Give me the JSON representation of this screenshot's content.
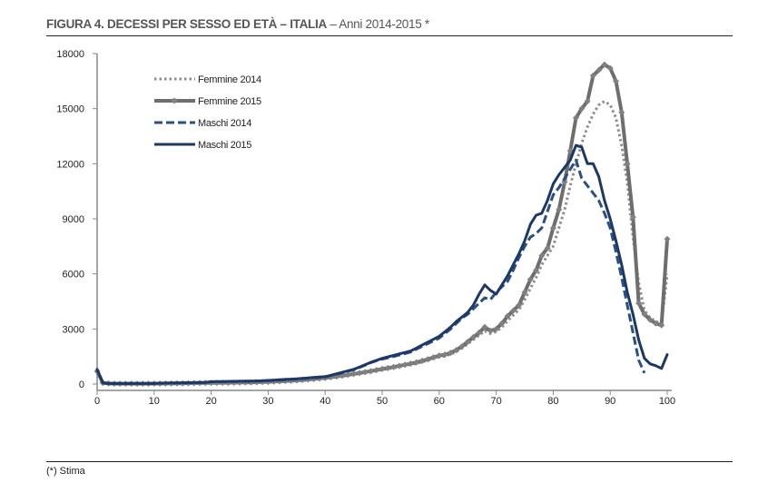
{
  "title": {
    "bold": "FIGURA 4. DECESSI PER SESSO ED ETÀ  – ITALIA",
    "light": " – Anni 2014-2015 *"
  },
  "footnote": "(*) Stima",
  "chart_data": {
    "type": "line",
    "title": "FIGURA 4. DECESSI PER SESSO ED ETÀ – ITALIA – Anni 2014-2015 *",
    "xlabel": "",
    "ylabel": "",
    "xlim": [
      0,
      100
    ],
    "ylim": [
      0,
      18000
    ],
    "x_ticks": [
      "0",
      "10",
      "20",
      "30",
      "40",
      "50",
      "60",
      "70",
      "80",
      "90",
      "100"
    ],
    "y_ticks": [
      "0",
      "3000",
      "6000",
      "9000",
      "12000",
      "15000",
      "18000"
    ],
    "grid": false,
    "legend_position": "top-left",
    "series": [
      {
        "name": "Femmine 2014",
        "color": "#8c8c8c",
        "style": "dotted",
        "values": [
          660,
          55,
          28,
          19,
          19,
          19,
          19,
          19,
          19,
          19,
          24,
          24,
          28,
          28,
          33,
          38,
          43,
          48,
          52,
          57,
          57,
          62,
          66,
          66,
          71,
          76,
          81,
          86,
          95,
          105,
          114,
          128,
          143,
          157,
          171,
          190,
          209,
          233,
          257,
          285,
          314,
          352,
          390,
          428,
          475,
          523,
          570,
          618,
          665,
          722,
          780,
          830,
          885,
          940,
          1000,
          1055,
          1120,
          1200,
          1285,
          1380,
          1470,
          1520,
          1620,
          1760,
          1950,
          2180,
          2420,
          2650,
          2900,
          2750,
          2850,
          3100,
          3450,
          3750,
          4050,
          4600,
          5200,
          5800,
          6500,
          7000,
          7500,
          8500,
          9500,
          10800,
          12000,
          13100,
          14000,
          14700,
          15200,
          15400,
          15200,
          14500,
          13000,
          11000,
          8000,
          5500,
          4000,
          3600,
          3400,
          3300,
          6000
        ]
      },
      {
        "name": "Femmine 2015",
        "color": "#6e6e6e",
        "style": "solid-diamond",
        "values": [
          700,
          60,
          30,
          20,
          20,
          20,
          20,
          20,
          20,
          20,
          25,
          25,
          30,
          30,
          35,
          40,
          45,
          50,
          55,
          60,
          60,
          65,
          70,
          70,
          75,
          80,
          85,
          90,
          100,
          110,
          120,
          135,
          150,
          165,
          180,
          200,
          220,
          245,
          270,
          300,
          330,
          370,
          410,
          450,
          500,
          550,
          600,
          650,
          700,
          760,
          820,
          870,
          930,
          990,
          1050,
          1110,
          1180,
          1260,
          1350,
          1450,
          1550,
          1600,
          1700,
          1850,
          2050,
          2300,
          2550,
          2800,
          3100,
          2900,
          3000,
          3300,
          3700,
          4000,
          4300,
          5000,
          5700,
          6200,
          7000,
          7400,
          8500,
          9500,
          11000,
          12700,
          14500,
          15000,
          15400,
          16800,
          17100,
          17400,
          17200,
          16500,
          14800,
          12000,
          9100,
          4400,
          3800,
          3500,
          3300,
          3200,
          7900
        ]
      },
      {
        "name": "Maschi 2014",
        "color": "#2a4f80",
        "style": "dashed",
        "values": [
          760,
          65,
          28,
          28,
          28,
          28,
          28,
          28,
          28,
          28,
          28,
          45,
          50,
          55,
          60,
          65,
          70,
          75,
          80,
          85,
          120,
          125,
          130,
          135,
          140,
          145,
          150,
          155,
          160,
          170,
          190,
          200,
          215,
          230,
          250,
          265,
          290,
          315,
          340,
          365,
          390,
          460,
          540,
          620,
          700,
          770,
          900,
          1030,
          1160,
          1270,
          1360,
          1430,
          1500,
          1580,
          1660,
          1740,
          1900,
          2050,
          2200,
          2350,
          2500,
          2750,
          3000,
          3300,
          3600,
          3800,
          4100,
          4400,
          4700,
          4600,
          5000,
          5300,
          5600,
          6200,
          6900,
          7500,
          8000,
          8200,
          8500,
          9400,
          10300,
          10700,
          11200,
          11700,
          12200,
          11200,
          10800,
          10400,
          10000,
          9300,
          8500,
          7200,
          5800,
          4300,
          2800,
          1300,
          600,
          null,
          null,
          null,
          null
        ]
      },
      {
        "name": "Maschi 2015",
        "color": "#1b3866",
        "style": "solid",
        "values": [
          800,
          70,
          30,
          30,
          30,
          30,
          30,
          30,
          30,
          30,
          30,
          50,
          55,
          60,
          65,
          70,
          75,
          80,
          85,
          90,
          130,
          135,
          140,
          145,
          150,
          155,
          160,
          165,
          170,
          180,
          200,
          215,
          230,
          250,
          265,
          280,
          305,
          330,
          355,
          380,
          400,
          480,
          560,
          640,
          720,
          800,
          920,
          1050,
          1180,
          1290,
          1400,
          1480,
          1560,
          1640,
          1720,
          1800,
          1960,
          2120,
          2280,
          2440,
          2600,
          2850,
          3100,
          3400,
          3650,
          3900,
          4300,
          4900,
          5400,
          5100,
          4900,
          5400,
          5900,
          6500,
          7100,
          7800,
          8700,
          9200,
          9300,
          10000,
          10900,
          11400,
          11800,
          12200,
          13000,
          12900,
          12000,
          12000,
          11300,
          10000,
          9000,
          7800,
          6500,
          5000,
          3800,
          2400,
          1400,
          1100,
          1000,
          850,
          1600
        ]
      }
    ]
  }
}
